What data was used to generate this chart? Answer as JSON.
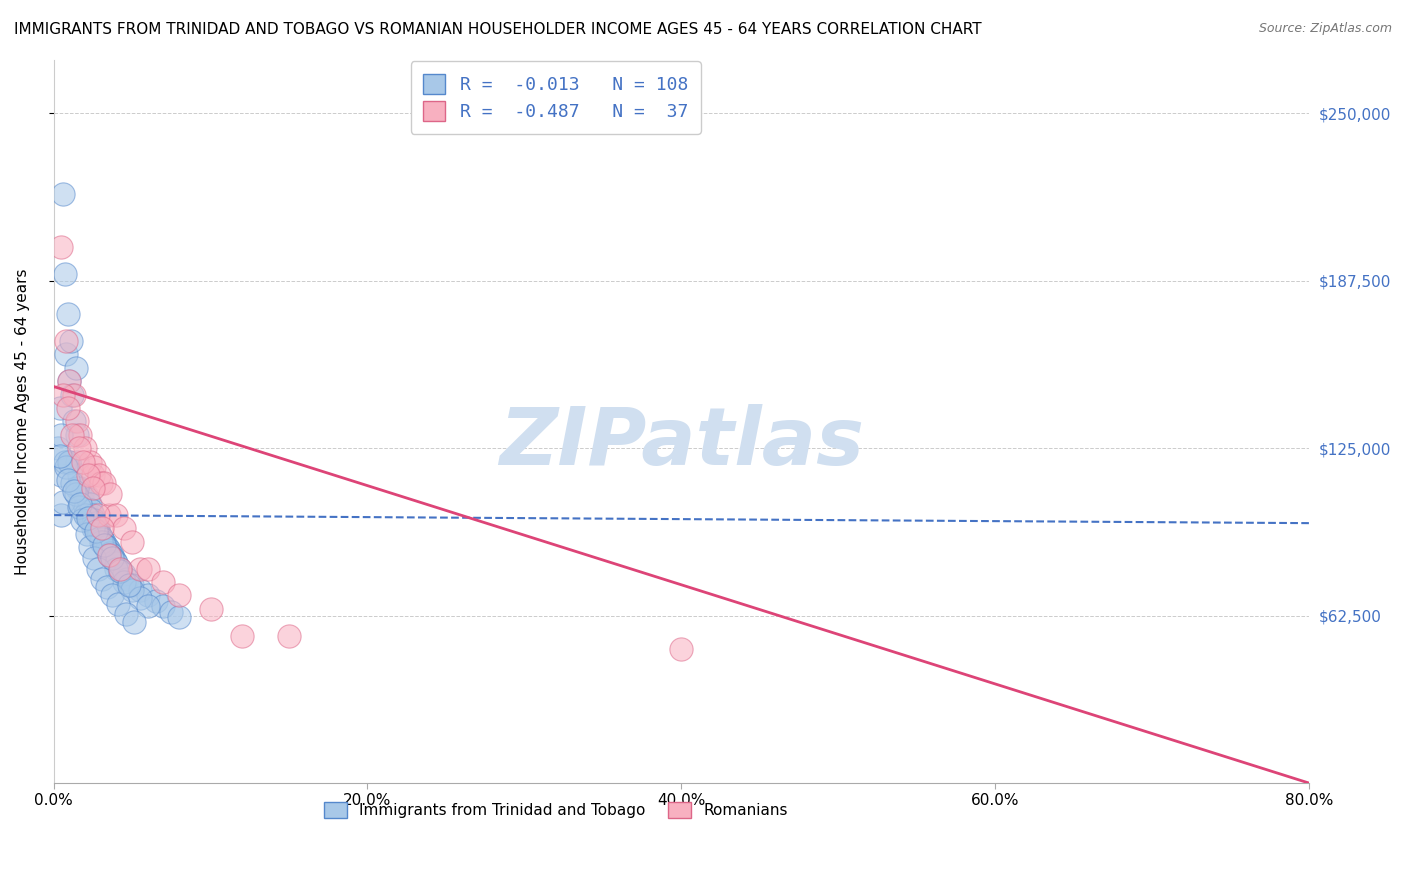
{
  "title": "IMMIGRANTS FROM TRINIDAD AND TOBAGO VS ROMANIAN HOUSEHOLDER INCOME AGES 45 - 64 YEARS CORRELATION CHART",
  "source": "Source: ZipAtlas.com",
  "ylabel": "Householder Income Ages 45 - 64 years",
  "xlabel_ticks": [
    "0.0%",
    "20.0%",
    "40.0%",
    "60.0%",
    "80.0%"
  ],
  "xlabel_vals": [
    0.0,
    20.0,
    40.0,
    60.0,
    80.0
  ],
  "ylabel_ticks": [
    "$62,500",
    "$125,000",
    "$187,500",
    "$250,000"
  ],
  "ylabel_vals": [
    62500,
    125000,
    187500,
    250000
  ],
  "ylim": [
    0,
    270000
  ],
  "xlim": [
    0,
    80
  ],
  "blue_R": -0.013,
  "blue_N": 108,
  "pink_R": -0.487,
  "pink_N": 37,
  "blue_color": "#a8c8e8",
  "pink_color": "#f8b0c0",
  "blue_edge_color": "#5588cc",
  "pink_edge_color": "#dd6688",
  "blue_line_color": "#4472c4",
  "pink_line_color": "#dd4477",
  "watermark_color": "#d0dff0",
  "legend_blue_label": "R =  -0.013   N = 108",
  "legend_pink_label": "R =  -0.487   N =  37",
  "blue_line_y0": 100000,
  "blue_line_y1": 97000,
  "pink_line_y0": 148000,
  "pink_line_y1": 0,
  "blue_scatter_x": [
    0.3,
    0.4,
    0.5,
    0.5,
    0.6,
    0.7,
    0.8,
    0.9,
    1.0,
    1.0,
    1.1,
    1.2,
    1.3,
    1.4,
    1.5,
    1.5,
    1.5,
    1.6,
    1.7,
    1.7,
    1.8,
    1.9,
    2.0,
    2.0,
    2.1,
    2.1,
    2.2,
    2.2,
    2.3,
    2.3,
    2.4,
    2.4,
    2.5,
    2.5,
    2.6,
    2.6,
    2.7,
    2.7,
    2.8,
    2.8,
    2.9,
    2.9,
    3.0,
    3.0,
    3.1,
    3.1,
    3.2,
    3.2,
    3.3,
    3.3,
    3.4,
    3.4,
    3.5,
    3.5,
    3.6,
    3.7,
    3.8,
    3.9,
    4.0,
    4.2,
    4.5,
    4.7,
    5.0,
    5.5,
    6.0,
    6.5,
    7.0,
    7.5,
    8.0,
    0.5,
    0.7,
    1.0,
    1.5,
    2.0,
    2.5,
    3.0,
    3.5,
    4.0,
    4.5,
    5.0,
    5.5,
    6.0,
    0.6,
    0.8,
    1.2,
    1.4,
    1.6,
    1.8,
    2.1,
    2.3,
    2.6,
    2.8,
    3.1,
    3.4,
    3.7,
    4.1,
    4.6,
    5.1,
    0.4,
    0.9,
    1.3,
    1.7,
    2.2,
    2.7,
    3.2,
    3.7,
    4.2,
    4.8
  ],
  "blue_scatter_y": [
    125000,
    140000,
    100000,
    115000,
    220000,
    190000,
    160000,
    175000,
    150000,
    120000,
    165000,
    145000,
    135000,
    155000,
    130000,
    120000,
    110000,
    115000,
    110000,
    103000,
    108000,
    105000,
    103000,
    100000,
    101000,
    107000,
    100000,
    106000,
    99000,
    104000,
    98000,
    102000,
    97000,
    100000,
    96000,
    98000,
    95000,
    97000,
    94000,
    95000,
    93000,
    93000,
    92000,
    92000,
    91000,
    91000,
    90000,
    89000,
    89000,
    88000,
    88000,
    87000,
    87000,
    85000,
    86000,
    85000,
    84000,
    83000,
    82000,
    80000,
    78000,
    76000,
    74000,
    72000,
    70000,
    68000,
    66000,
    64000,
    62000,
    130000,
    120000,
    120000,
    110000,
    100000,
    95000,
    90000,
    85000,
    80000,
    75000,
    72000,
    69000,
    66000,
    105000,
    118000,
    112000,
    108000,
    103000,
    98000,
    93000,
    88000,
    84000,
    80000,
    76000,
    73000,
    70000,
    67000,
    63000,
    60000,
    122000,
    113000,
    109000,
    104000,
    99000,
    94000,
    89000,
    84000,
    79000,
    74000
  ],
  "pink_scatter_x": [
    0.5,
    0.8,
    1.0,
    1.3,
    1.5,
    1.7,
    2.0,
    2.3,
    2.5,
    2.6,
    2.9,
    3.0,
    3.2,
    3.5,
    3.6,
    4.0,
    4.5,
    5.0,
    5.5,
    6.0,
    7.0,
    8.0,
    10.0,
    12.0,
    15.0,
    0.6,
    0.9,
    1.2,
    1.6,
    1.9,
    2.2,
    2.5,
    2.8,
    3.1,
    3.5,
    4.2,
    40.0
  ],
  "pink_scatter_y": [
    200000,
    165000,
    150000,
    145000,
    135000,
    130000,
    125000,
    120000,
    115000,
    118000,
    115000,
    112000,
    112000,
    100000,
    108000,
    100000,
    95000,
    90000,
    80000,
    80000,
    75000,
    70000,
    65000,
    55000,
    55000,
    145000,
    140000,
    130000,
    125000,
    120000,
    115000,
    110000,
    100000,
    95000,
    85000,
    80000,
    50000
  ]
}
